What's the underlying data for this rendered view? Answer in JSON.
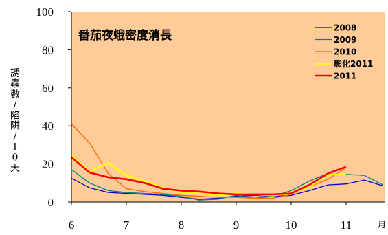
{
  "chart_data": {
    "type": "line",
    "title": "番茄夜蛾密度消長",
    "ylabel": "誘蟲數/陷阱/10天",
    "x_unit": "月",
    "x_ticks": [
      "6",
      "7",
      "8",
      "9",
      "10",
      "11"
    ],
    "xlim": [
      6,
      11.7
    ],
    "ylim": [
      0,
      100
    ],
    "y_ticks": [
      "0",
      "20",
      "40",
      "60",
      "80",
      "100"
    ],
    "grid": false,
    "legend_position": "top-right",
    "plot_background": "#FFCC99",
    "series": [
      {
        "name": "2008",
        "color": "#0000CC",
        "x": [
          6.0,
          6.33,
          6.67,
          7.0,
          7.33,
          7.67,
          8.0,
          8.33,
          8.67,
          9.0,
          9.33,
          9.67,
          10.0,
          10.33,
          10.67,
          11.0,
          11.33,
          11.67
        ],
        "y": [
          12.5,
          7.5,
          5,
          4.5,
          4,
          3.5,
          2.5,
          1.5,
          2,
          3,
          3.5,
          3,
          3.5,
          6,
          9,
          9.5,
          11.5,
          8.5
        ]
      },
      {
        "name": "2009",
        "color": "#008080",
        "x": [
          6.0,
          6.33,
          6.67,
          7.0,
          7.33,
          7.67,
          8.0,
          8.33,
          8.67,
          9.0,
          9.33,
          9.67,
          10.0,
          10.33,
          10.67,
          11.0,
          11.33,
          11.67
        ],
        "y": [
          17,
          10,
          6,
          5,
          4.5,
          4,
          3,
          1,
          1.5,
          3.5,
          2,
          3,
          6,
          11,
          15,
          14.5,
          14,
          9
        ]
      },
      {
        "name": "2010",
        "color": "#FF6600",
        "x": [
          6.0,
          6.33,
          6.67,
          7.0,
          7.33,
          7.67,
          8.0,
          8.33,
          8.67,
          9.0,
          9.33,
          9.67,
          10.0,
          10.33,
          10.67,
          11.0
        ],
        "y": [
          41,
          31,
          15,
          7,
          5.5,
          4.5,
          3.5,
          3,
          2.5,
          2.5,
          2,
          2,
          4,
          8,
          12,
          18
        ]
      },
      {
        "name": "彰化2011",
        "color": "#FFFF00",
        "x": [
          6.0,
          6.33,
          6.67,
          7.0,
          7.33,
          7.67,
          8.0,
          8.33,
          8.67,
          9.0,
          9.33,
          9.67,
          10.0,
          10.33,
          10.67,
          11.0
        ],
        "y": [
          24.5,
          16,
          20.5,
          14,
          11,
          7.5,
          5,
          4.5,
          3.5,
          4.5,
          4,
          3.5,
          4.5,
          8,
          14.5,
          14.5
        ]
      },
      {
        "name": "2011",
        "color": "#FF0000",
        "x": [
          6.0,
          6.33,
          6.67,
          7.0,
          7.33,
          7.67,
          8.0,
          8.33,
          8.67,
          9.0,
          9.33,
          9.67,
          10.0,
          10.33,
          10.67,
          11.0
        ],
        "y": [
          23.5,
          15.5,
          13,
          12,
          10,
          7,
          6,
          5.5,
          4.5,
          4,
          4,
          4,
          4.5,
          9,
          15,
          18.5
        ]
      }
    ]
  }
}
